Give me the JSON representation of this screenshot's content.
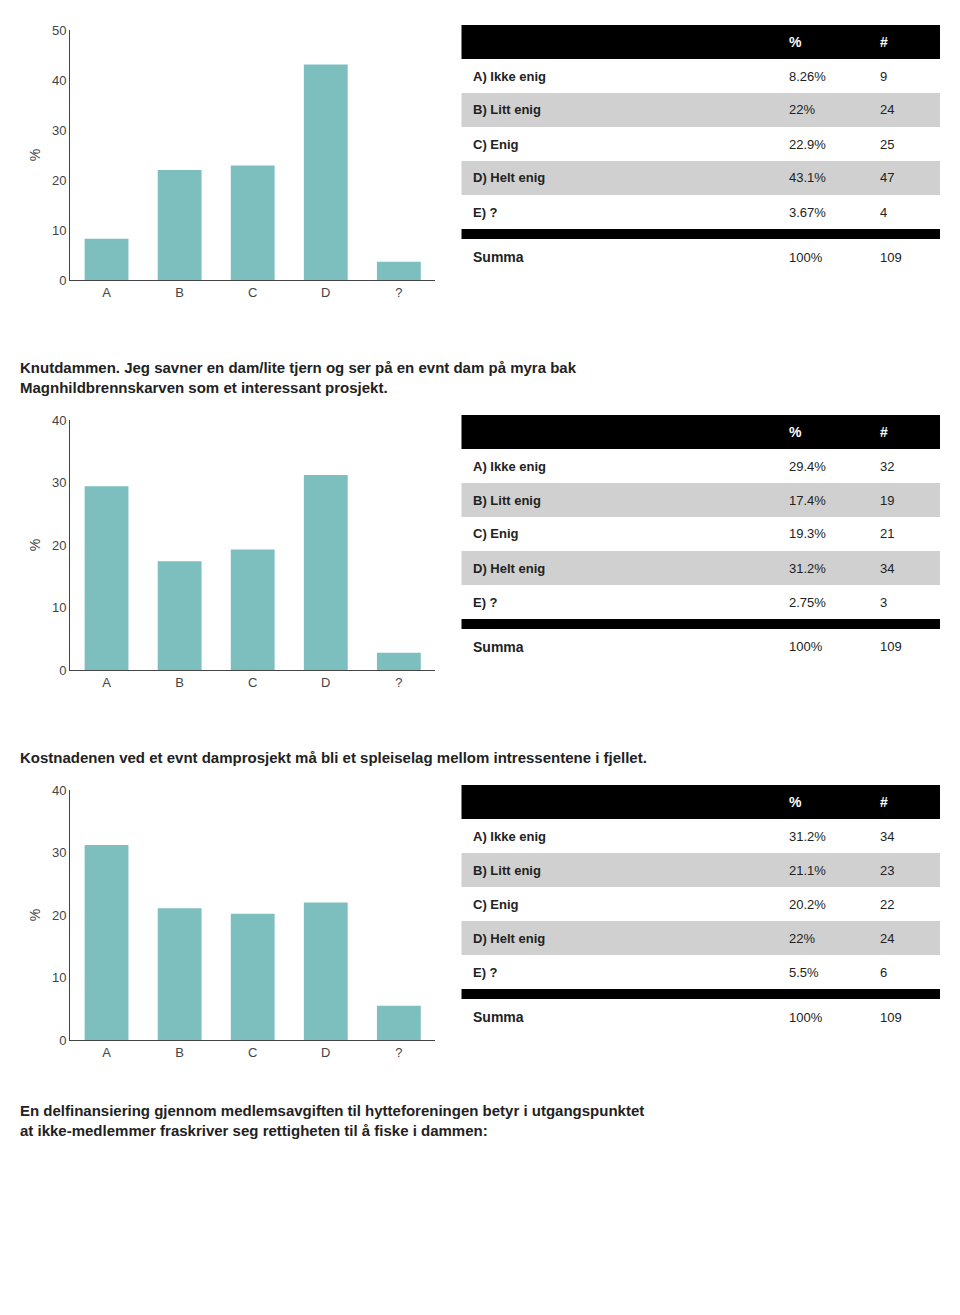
{
  "chart_data": [
    {
      "type": "bar",
      "categories": [
        "A",
        "B",
        "C",
        "D",
        "?"
      ],
      "values": [
        8.26,
        22,
        22.9,
        43.1,
        3.67
      ],
      "color": "#7dbfbf",
      "ylim": [
        0,
        50
      ],
      "yticks": [
        0,
        10,
        20,
        30,
        40,
        50
      ],
      "ylabel": "%",
      "grid": false,
      "table": {
        "columns": [
          "%",
          "#"
        ],
        "rows": [
          [
            "A) Ikke enig",
            "8.26%",
            "9"
          ],
          [
            "B) Litt enig",
            "22%",
            "24"
          ],
          [
            "C) Enig",
            "22.9%",
            "25"
          ],
          [
            "D) Helt enig",
            "43.1%",
            "47"
          ],
          [
            "E) ?",
            "3.67%",
            "4"
          ]
        ],
        "total": [
          "Summa",
          "100%",
          "109"
        ]
      }
    },
    {
      "type": "bar",
      "title": "Knutdammen. Jeg savner en dam/lite tjern og ser på en evnt dam på myra bak\nMagnhildbrennskarven som et interessant prosjekt.",
      "categories": [
        "A",
        "B",
        "C",
        "D",
        "?"
      ],
      "values": [
        29.4,
        17.4,
        19.3,
        31.2,
        2.75
      ],
      "color": "#7dbfbf",
      "ylim": [
        0,
        40
      ],
      "yticks": [
        0,
        10,
        20,
        30,
        40
      ],
      "ylabel": "%",
      "grid": false,
      "table": {
        "columns": [
          "%",
          "#"
        ],
        "rows": [
          [
            "A) Ikke enig",
            "29.4%",
            "32"
          ],
          [
            "B) Litt enig",
            "17.4%",
            "19"
          ],
          [
            "C) Enig",
            "19.3%",
            "21"
          ],
          [
            "D) Helt enig",
            "31.2%",
            "34"
          ],
          [
            "E) ?",
            "2.75%",
            "3"
          ]
        ],
        "total": [
          "Summa",
          "100%",
          "109"
        ]
      }
    },
    {
      "type": "bar",
      "title": "Kostnadenen ved et evnt damprosjekt må bli et spleiselag mellom intressentene i fjellet.",
      "categories": [
        "A",
        "B",
        "C",
        "D",
        "?"
      ],
      "values": [
        31.2,
        21.1,
        20.2,
        22,
        5.5
      ],
      "color": "#7dbfbf",
      "ylim": [
        0,
        40
      ],
      "yticks": [
        0,
        10,
        20,
        30,
        40
      ],
      "ylabel": "%",
      "grid": false,
      "table": {
        "columns": [
          "%",
          "#"
        ],
        "rows": [
          [
            "A) Ikke enig",
            "31.2%",
            "34"
          ],
          [
            "B) Litt enig",
            "21.1%",
            "23"
          ],
          [
            "C) Enig",
            "20.2%",
            "22"
          ],
          [
            "D) Helt enig",
            "22%",
            "24"
          ],
          [
            "E) ?",
            "5.5%",
            "6"
          ]
        ],
        "total": [
          "Summa",
          "100%",
          "109"
        ]
      },
      "annotations": [
        "En delfinansiering gjennom medlemsavgiften til hytteforeningen betyr i utgangspunktet\nat ikke-medlemmer fraskriver seg rettigheten til å fiske i dammen:"
      ]
    }
  ]
}
